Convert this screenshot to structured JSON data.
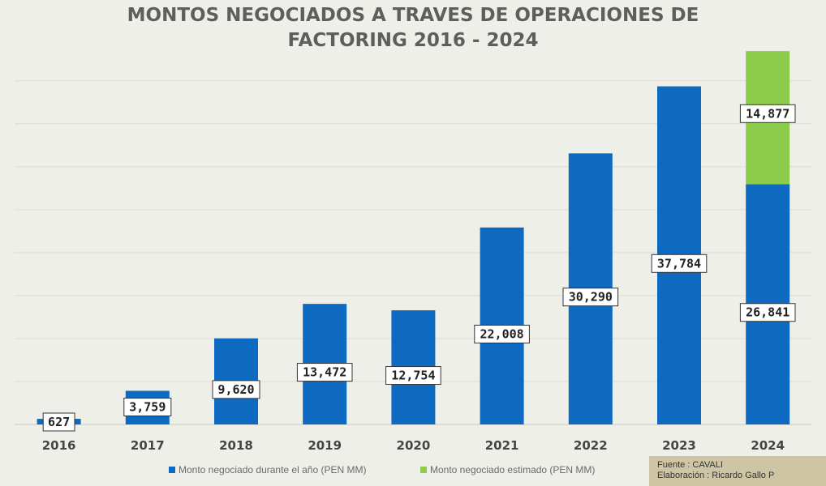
{
  "title_lines": [
    "MONTOS NEGOCIADOS A TRAVES DE OPERACIONES DE",
    "FACTORING 2016 - 2024"
  ],
  "colors": {
    "negotiated": "#0e6ac0",
    "estimated": "#8ccc4a",
    "title": "#5e5e5e",
    "grid": "#dcdcd2"
  },
  "legend": {
    "negotiated": "Monto negociado durante el año (PEN MM)",
    "estimated": "Monto negociado estimado (PEN MM)"
  },
  "source": {
    "line1": "Fuente : CAVALI",
    "line2": "Elaboración : Ricardo Gallo P"
  },
  "chart_data": {
    "type": "bar",
    "stacked": true,
    "title": "MONTOS NEGOCIADOS A TRAVES DE OPERACIONES DE FACTORING 2016 - 2024",
    "categories": [
      "2016",
      "2017",
      "2018",
      "2019",
      "2020",
      "2021",
      "2022",
      "2023",
      "2024"
    ],
    "series": [
      {
        "name": "Monto negociado durante el año (PEN MM)",
        "values": [
          627,
          3759,
          9620,
          13472,
          12754,
          22008,
          30290,
          37784,
          26841
        ]
      },
      {
        "name": "Monto negociado estimado (PEN MM)",
        "values": [
          null,
          null,
          null,
          null,
          null,
          null,
          null,
          null,
          14877
        ]
      }
    ],
    "data_labels": [
      "627",
      "3,759",
      "9,620",
      "13,472",
      "12,754",
      "22,008",
      "30,290",
      "37,784",
      "26,841",
      "14,877"
    ],
    "ylim": [
      0,
      42000
    ],
    "grid": true,
    "legend_position": "bottom"
  }
}
